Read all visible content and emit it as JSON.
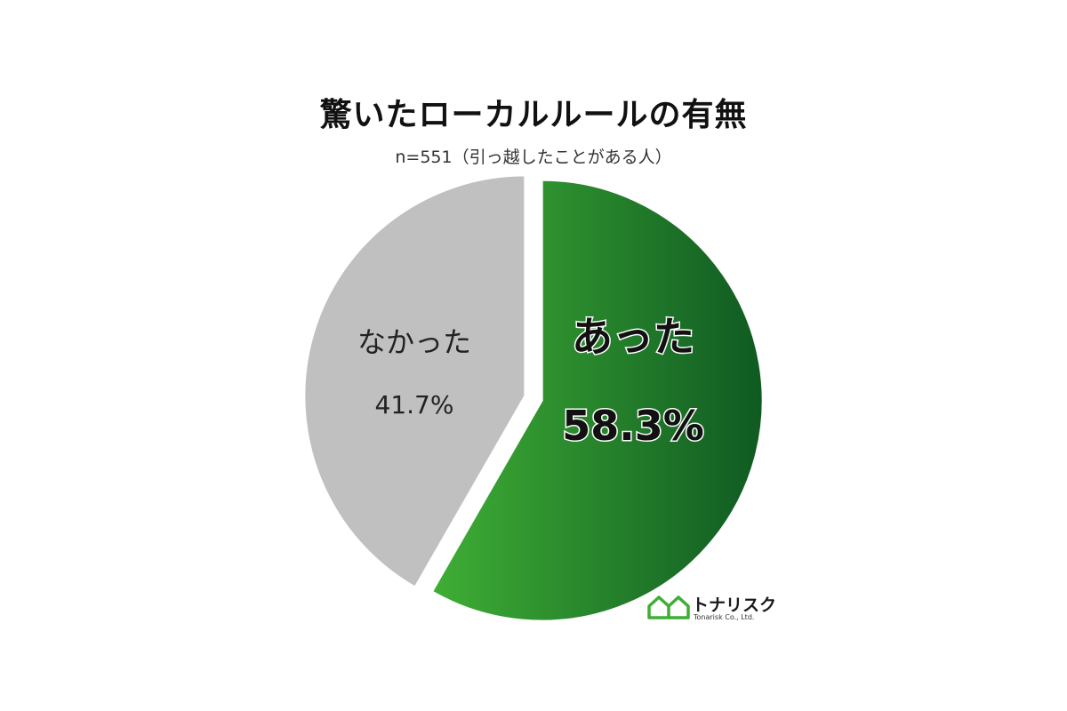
{
  "chart_data": {
    "type": "pie",
    "title": "驚いたローカルルールの有無",
    "subtitle": "n=551（引っ越したことがある人）",
    "slices": [
      {
        "label": "あった",
        "value": 58.3,
        "value_label": "58.3%",
        "color_start": "#3fae35",
        "color_end": "#0f5a22"
      },
      {
        "label": "なかった",
        "value": 41.7,
        "value_label": "41.7%",
        "color": "#c0c0c0"
      }
    ]
  },
  "logo": {
    "name": "トナリスク",
    "sub": "Tonarisk Co., Ltd.",
    "color": "#3fae35"
  }
}
